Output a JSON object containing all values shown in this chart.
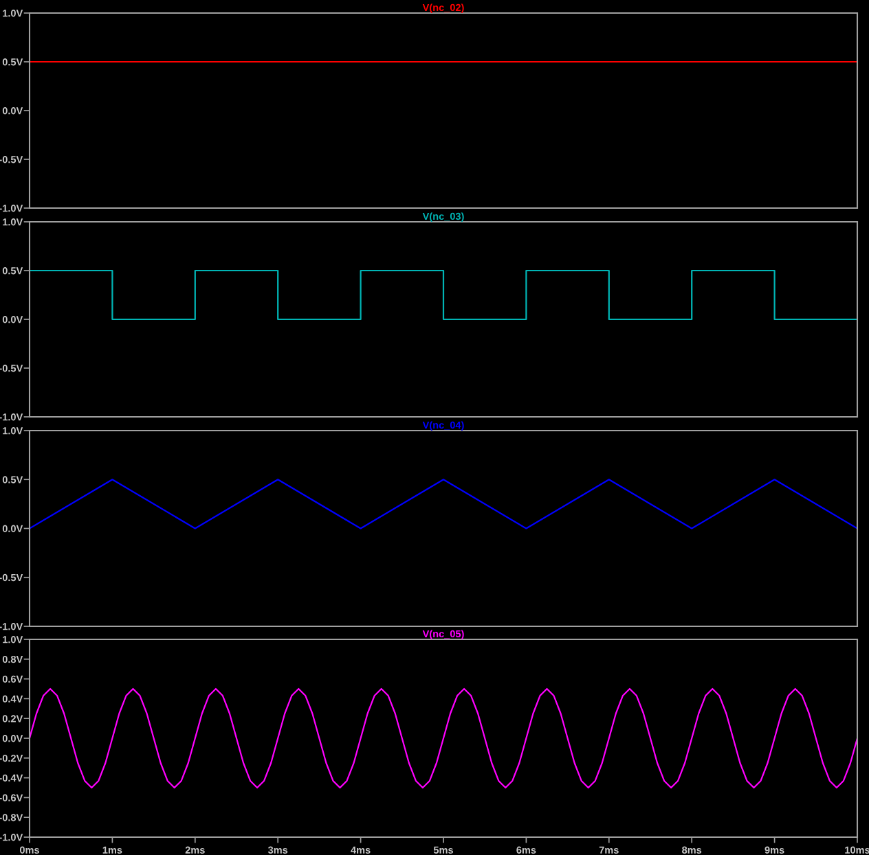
{
  "chart_data": [
    {
      "type": "line",
      "title": "V(nc_02)",
      "x": [
        0,
        10
      ],
      "series": [
        {
          "color": "#ff0000",
          "values": [
            0.5,
            0.5
          ]
        }
      ],
      "xlim": [
        0,
        10
      ],
      "ylim": [
        -1.0,
        1.0
      ],
      "yticks": [
        {
          "value": -1.0,
          "label": "-1.0V"
        },
        {
          "value": -0.5,
          "label": "-0.5V"
        },
        {
          "value": 0.0,
          "label": "0.0V"
        },
        {
          "value": 0.5,
          "label": "0.5V"
        },
        {
          "value": 1.0,
          "label": "1.0V"
        }
      ],
      "tick_labels": "y",
      "grid": false,
      "legend": false
    },
    {
      "type": "line",
      "title": "V(nc_03)",
      "x": [
        0,
        1,
        1,
        2,
        2,
        3,
        3,
        4,
        4,
        5,
        5,
        6,
        6,
        7,
        7,
        8,
        8,
        9,
        9,
        10
      ],
      "series": [
        {
          "color": "#00b4b4",
          "values": [
            0.5,
            0.5,
            0,
            0,
            0.5,
            0.5,
            0,
            0,
            0.5,
            0.5,
            0,
            0,
            0.5,
            0.5,
            0,
            0,
            0.5,
            0.5,
            0,
            0
          ]
        }
      ],
      "xlim": [
        0,
        10
      ],
      "ylim": [
        -1.0,
        1.0
      ],
      "yticks": [
        {
          "value": -1.0,
          "label": "-1.0V"
        },
        {
          "value": -0.5,
          "label": "-0.5V"
        },
        {
          "value": 0.0,
          "label": "0.0V"
        },
        {
          "value": 0.5,
          "label": "0.5V"
        },
        {
          "value": 1.0,
          "label": "1.0V"
        }
      ],
      "tick_labels": "y",
      "grid": false,
      "legend": false
    },
    {
      "type": "line",
      "title": "V(nc_04)",
      "x": [
        0,
        1,
        2,
        3,
        4,
        5,
        6,
        7,
        8,
        9,
        10
      ],
      "series": [
        {
          "color": "#0000ff",
          "values": [
            0,
            0.5,
            0,
            0.5,
            0,
            0.5,
            0,
            0.5,
            0,
            0.5,
            0
          ]
        }
      ],
      "xlim": [
        0,
        10
      ],
      "ylim": [
        -1.0,
        1.0
      ],
      "yticks": [
        {
          "value": -1.0,
          "label": "-1.0V"
        },
        {
          "value": -0.5,
          "label": "-0.5V"
        },
        {
          "value": 0.0,
          "label": "0.0V"
        },
        {
          "value": 0.5,
          "label": "0.5V"
        },
        {
          "value": 1.0,
          "label": "1.0V"
        }
      ],
      "tick_labels": "y",
      "grid": false,
      "legend": false
    },
    {
      "type": "line",
      "title": "V(nc_05)",
      "x": [
        0,
        0.0833,
        0.1667,
        0.25,
        0.3333,
        0.4167,
        0.5,
        0.5833,
        0.6667,
        0.75,
        0.8333,
        0.9167,
        1,
        1.0833,
        1.1667,
        1.25,
        1.3333,
        1.4167,
        1.5,
        1.5833,
        1.6667,
        1.75,
        1.8333,
        1.9167,
        2,
        2.0833,
        2.1667,
        2.25,
        2.3333,
        2.4167,
        2.5,
        2.5833,
        2.6667,
        2.75,
        2.8333,
        2.9167,
        3,
        3.0833,
        3.1667,
        3.25,
        3.3333,
        3.4167,
        3.5,
        3.5833,
        3.6667,
        3.75,
        3.8333,
        3.9167,
        4,
        4.0833,
        4.1667,
        4.25,
        4.3333,
        4.4167,
        4.5,
        4.5833,
        4.6667,
        4.75,
        4.8333,
        4.9167,
        5,
        5.0833,
        5.1667,
        5.25,
        5.3333,
        5.4167,
        5.5,
        5.5833,
        5.6667,
        5.75,
        5.8333,
        5.9167,
        6,
        6.0833,
        6.1667,
        6.25,
        6.3333,
        6.4167,
        6.5,
        6.5833,
        6.6667,
        6.75,
        6.8333,
        6.9167,
        7,
        7.0833,
        7.1667,
        7.25,
        7.3333,
        7.4167,
        7.5,
        7.5833,
        7.6667,
        7.75,
        7.8333,
        7.9167,
        8,
        8.0833,
        8.1667,
        8.25,
        8.3333,
        8.4167,
        8.5,
        8.5833,
        8.6667,
        8.75,
        8.8333,
        8.9167,
        9,
        9.0833,
        9.1667,
        9.25,
        9.3333,
        9.4167,
        9.5,
        9.5833,
        9.6667,
        9.75,
        9.8333,
        9.9167,
        10
      ],
      "series": [
        {
          "color": "#ff00ff",
          "values": [
            0,
            0.25,
            0.43,
            0.5,
            0.43,
            0.25,
            0,
            -0.25,
            -0.43,
            -0.5,
            -0.43,
            -0.25,
            0,
            0.25,
            0.43,
            0.5,
            0.43,
            0.25,
            0,
            -0.25,
            -0.43,
            -0.5,
            -0.43,
            -0.25,
            0,
            0.25,
            0.43,
            0.5,
            0.43,
            0.25,
            0,
            -0.25,
            -0.43,
            -0.5,
            -0.43,
            -0.25,
            0,
            0.25,
            0.43,
            0.5,
            0.43,
            0.25,
            0,
            -0.25,
            -0.43,
            -0.5,
            -0.43,
            -0.25,
            0,
            0.25,
            0.43,
            0.5,
            0.43,
            0.25,
            0,
            -0.25,
            -0.43,
            -0.5,
            -0.43,
            -0.25,
            0,
            0.25,
            0.43,
            0.5,
            0.43,
            0.25,
            0,
            -0.25,
            -0.43,
            -0.5,
            -0.43,
            -0.25,
            0,
            0.25,
            0.43,
            0.5,
            0.43,
            0.25,
            0,
            -0.25,
            -0.43,
            -0.5,
            -0.43,
            -0.25,
            0,
            0.25,
            0.43,
            0.5,
            0.43,
            0.25,
            0,
            -0.25,
            -0.43,
            -0.5,
            -0.43,
            -0.25,
            0,
            0.25,
            0.43,
            0.5,
            0.43,
            0.25,
            0,
            -0.25,
            -0.43,
            -0.5,
            -0.43,
            -0.25,
            0,
            0.25,
            0.43,
            0.5,
            0.43,
            0.25,
            0,
            -0.25,
            -0.43,
            -0.5,
            -0.43,
            -0.25,
            0
          ]
        }
      ],
      "xlim": [
        0,
        10
      ],
      "xticks": [
        {
          "value": 0,
          "label": "0ms"
        },
        {
          "value": 1,
          "label": "1ms"
        },
        {
          "value": 2,
          "label": "2ms"
        },
        {
          "value": 3,
          "label": "3ms"
        },
        {
          "value": 4,
          "label": "4ms"
        },
        {
          "value": 5,
          "label": "5ms"
        },
        {
          "value": 6,
          "label": "6ms"
        },
        {
          "value": 7,
          "label": "7ms"
        },
        {
          "value": 8,
          "label": "8ms"
        },
        {
          "value": 9,
          "label": "9ms"
        },
        {
          "value": 10,
          "label": "10ms"
        }
      ],
      "ylim": [
        -1.0,
        1.0
      ],
      "yticks": [
        {
          "value": -1.0,
          "label": "-1.0V"
        },
        {
          "value": -0.8,
          "label": "-0.8V"
        },
        {
          "value": -0.6,
          "label": "-0.6V"
        },
        {
          "value": -0.4,
          "label": "-0.4V"
        },
        {
          "value": -0.2,
          "label": "-0.2V"
        },
        {
          "value": 0.0,
          "label": "0.0V"
        },
        {
          "value": 0.2,
          "label": "0.2V"
        },
        {
          "value": 0.4,
          "label": "0.4V"
        },
        {
          "value": 0.6,
          "label": "0.6V"
        },
        {
          "value": 0.8,
          "label": "0.8V"
        },
        {
          "value": 1.0,
          "label": "1.0V"
        }
      ],
      "grid": false,
      "legend": false
    }
  ]
}
